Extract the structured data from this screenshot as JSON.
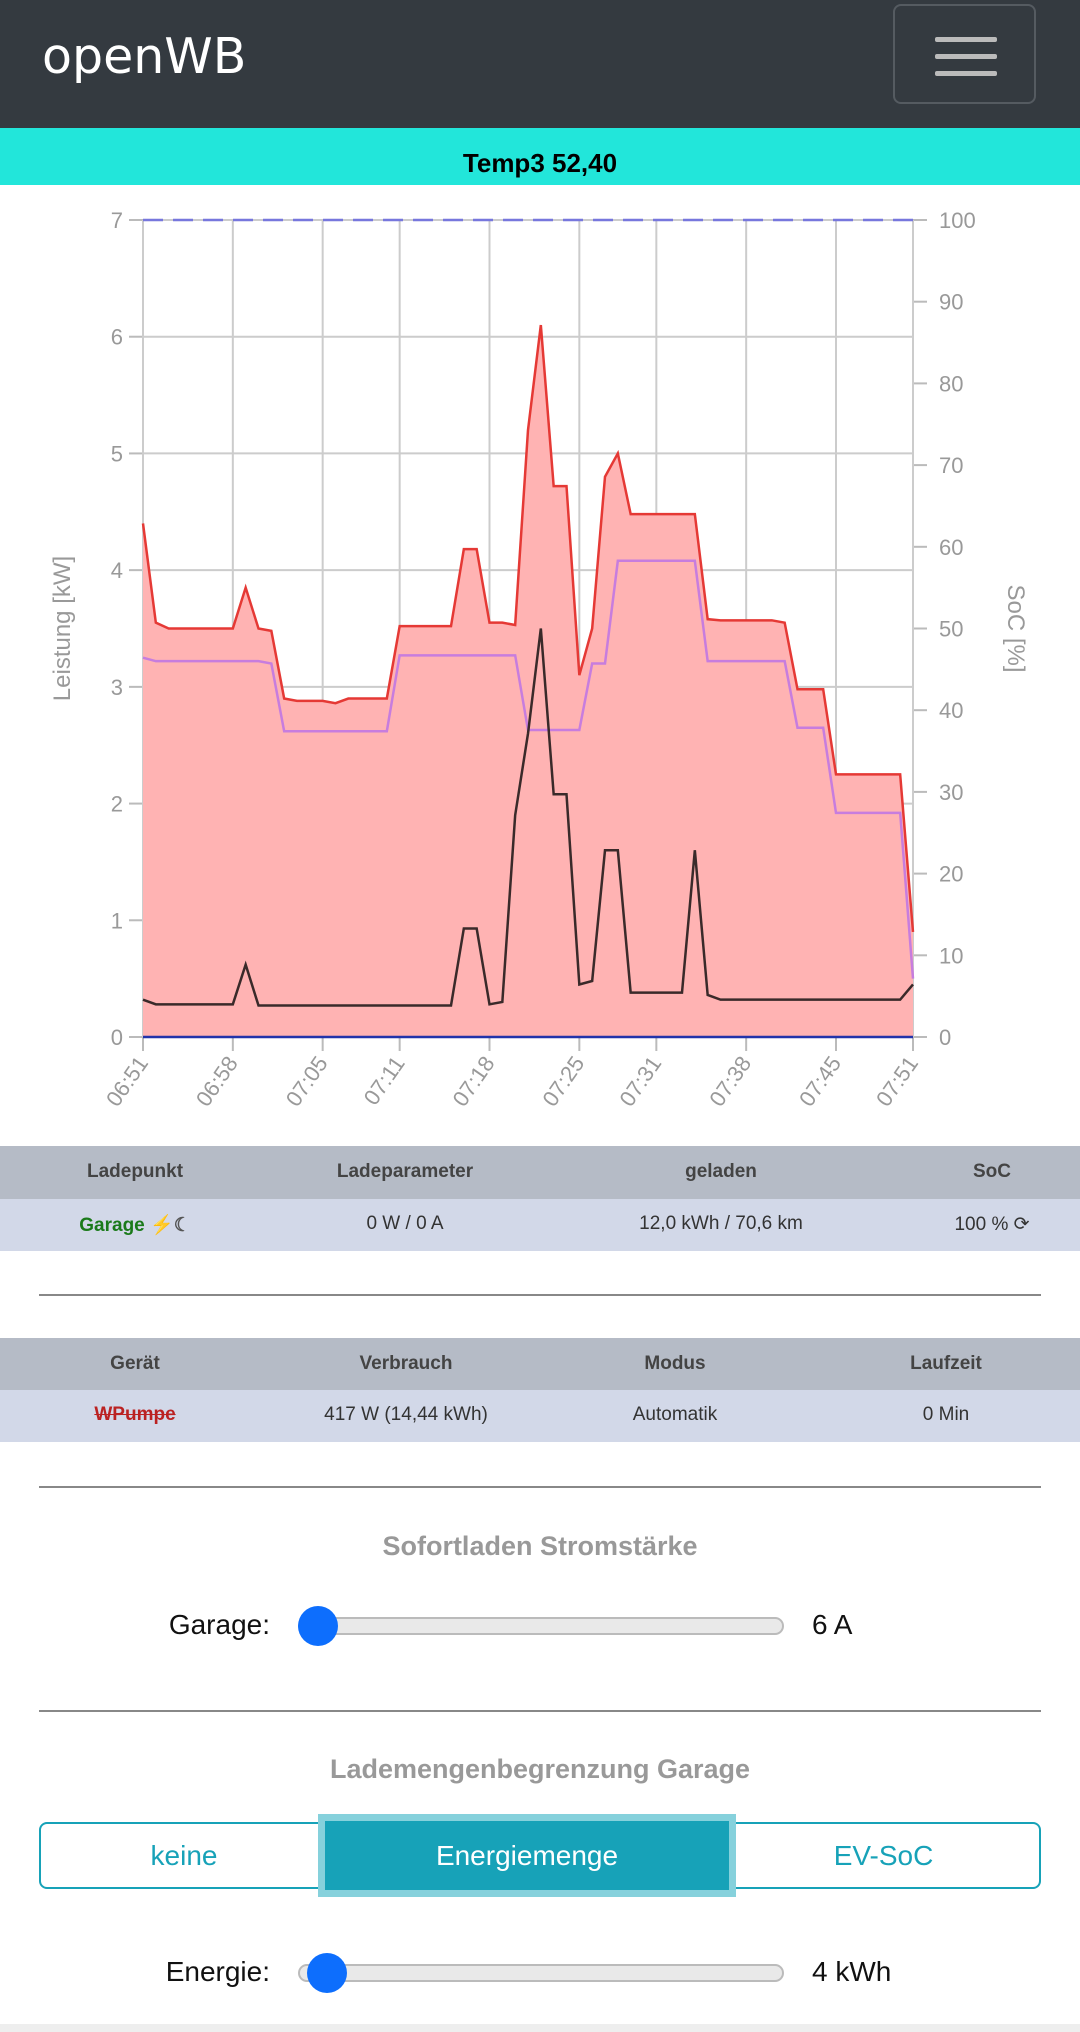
{
  "header": {
    "title": "openWB"
  },
  "banner": {
    "text": "Temp3 52,40"
  },
  "chart_data": {
    "type": "line",
    "ylabel": "Leistung [kW]",
    "y2label": "SoC [%]",
    "x": [
      "06:51",
      "06:52",
      "06:53",
      "06:54",
      "06:55",
      "06:56",
      "06:57",
      "06:58",
      "06:59",
      "07:00",
      "07:01",
      "07:02",
      "07:03",
      "07:04",
      "07:05",
      "07:06",
      "07:07",
      "07:08",
      "07:09",
      "07:10",
      "07:11",
      "07:12",
      "07:13",
      "07:14",
      "07:15",
      "07:16",
      "07:17",
      "07:18",
      "07:19",
      "07:20",
      "07:21",
      "07:22",
      "07:23",
      "07:24",
      "07:25",
      "07:26",
      "07:27",
      "07:28",
      "07:29",
      "07:30",
      "07:31",
      "07:32",
      "07:33",
      "07:34",
      "07:35",
      "07:36",
      "07:37",
      "07:38",
      "07:39",
      "07:40",
      "07:41",
      "07:42",
      "07:43",
      "07:44",
      "07:45",
      "07:46",
      "07:47",
      "07:48",
      "07:49",
      "07:50",
      "07:51"
    ],
    "xticks": [
      "06:51",
      "06:58",
      "07:05",
      "07:11",
      "07:18",
      "07:25",
      "07:31",
      "07:38",
      "07:45",
      "07:51"
    ],
    "ylim": [
      0,
      7
    ],
    "yticks": [
      0,
      1,
      2,
      3,
      4,
      5,
      6,
      7
    ],
    "y2lim": [
      0,
      100
    ],
    "y2ticks": [
      0,
      10,
      20,
      30,
      40,
      50,
      60,
      70,
      80,
      90,
      100
    ],
    "grid": true,
    "series": [
      {
        "color": "#e53935",
        "fill": "#ffb3b3",
        "area": true,
        "values": [
          4.4,
          3.55,
          3.5,
          3.5,
          3.5,
          3.5,
          3.5,
          3.5,
          3.85,
          3.5,
          3.48,
          2.9,
          2.88,
          2.88,
          2.88,
          2.86,
          2.9,
          2.9,
          2.9,
          2.9,
          3.52,
          3.52,
          3.52,
          3.52,
          3.52,
          4.18,
          4.18,
          3.55,
          3.55,
          3.53,
          5.2,
          6.1,
          4.72,
          4.72,
          3.1,
          3.5,
          4.8,
          5.0,
          4.48,
          4.48,
          4.48,
          4.48,
          4.48,
          4.48,
          3.58,
          3.57,
          3.57,
          3.57,
          3.57,
          3.57,
          3.55,
          2.98,
          2.98,
          2.98,
          2.25,
          2.25,
          2.25,
          2.25,
          2.25,
          2.25,
          0.9
        ]
      },
      {
        "color": "#c77dde",
        "values": [
          3.25,
          3.22,
          3.22,
          3.22,
          3.22,
          3.22,
          3.22,
          3.22,
          3.22,
          3.22,
          3.2,
          2.62,
          2.62,
          2.62,
          2.62,
          2.62,
          2.62,
          2.62,
          2.62,
          2.62,
          3.27,
          3.27,
          3.27,
          3.27,
          3.27,
          3.27,
          3.27,
          3.27,
          3.27,
          3.27,
          2.63,
          2.63,
          2.63,
          2.63,
          2.63,
          3.2,
          3.2,
          4.08,
          4.08,
          4.08,
          4.08,
          4.08,
          4.08,
          4.08,
          3.22,
          3.22,
          3.22,
          3.22,
          3.22,
          3.22,
          3.22,
          2.65,
          2.65,
          2.65,
          1.92,
          1.92,
          1.92,
          1.92,
          1.92,
          1.92,
          0.5
        ]
      },
      {
        "color": "#3a2a2a",
        "values": [
          0.32,
          0.28,
          0.28,
          0.28,
          0.28,
          0.28,
          0.28,
          0.28,
          0.62,
          0.27,
          0.27,
          0.27,
          0.27,
          0.27,
          0.27,
          0.27,
          0.27,
          0.27,
          0.27,
          0.27,
          0.27,
          0.27,
          0.27,
          0.27,
          0.27,
          0.93,
          0.93,
          0.28,
          0.3,
          1.9,
          2.6,
          3.5,
          2.08,
          2.08,
          0.45,
          0.48,
          1.6,
          1.6,
          0.38,
          0.38,
          0.38,
          0.38,
          0.38,
          1.6,
          0.36,
          0.32,
          0.32,
          0.32,
          0.32,
          0.32,
          0.32,
          0.32,
          0.32,
          0.32,
          0.32,
          0.32,
          0.32,
          0.32,
          0.32,
          0.32,
          0.45
        ]
      },
      {
        "color": "#7777dd",
        "dashed": true,
        "axis": "y2",
        "values": [
          100,
          100,
          100,
          100,
          100,
          100,
          100,
          100,
          100,
          100,
          100,
          100,
          100,
          100,
          100,
          100,
          100,
          100,
          100,
          100,
          100,
          100,
          100,
          100,
          100,
          100,
          100,
          100,
          100,
          100,
          100,
          100,
          100,
          100,
          100,
          100,
          100,
          100,
          100,
          100,
          100,
          100,
          100,
          100,
          100,
          100,
          100,
          100,
          100,
          100,
          100,
          100,
          100,
          100,
          100,
          100,
          100,
          100,
          100,
          100,
          100
        ]
      },
      {
        "color": "#2233aa",
        "values": [
          0,
          0,
          0,
          0,
          0,
          0,
          0,
          0,
          0,
          0,
          0,
          0,
          0,
          0,
          0,
          0,
          0,
          0,
          0,
          0,
          0,
          0,
          0,
          0,
          0,
          0,
          0,
          0,
          0,
          0,
          0,
          0,
          0,
          0,
          0,
          0,
          0,
          0,
          0,
          0,
          0,
          0,
          0,
          0,
          0,
          0,
          0,
          0,
          0,
          0,
          0,
          0,
          0,
          0,
          0,
          0,
          0,
          0,
          0,
          0,
          0
        ]
      }
    ]
  },
  "charge_table": {
    "headers": [
      "Ladepunkt",
      "Ladeparameter",
      "geladen",
      "SoC"
    ],
    "rows": [
      [
        "Garage",
        "0 W / 0 A",
        "12,0 kWh / 70,6 km",
        "100 %"
      ]
    ]
  },
  "device_table": {
    "headers": [
      "Gerät",
      "Verbrauch",
      "Modus",
      "Laufzeit"
    ],
    "rows": [
      [
        "WPumpe",
        "417 W (14,44 kWh)",
        "Automatik",
        "0 Min"
      ]
    ]
  },
  "instant_charge": {
    "title": "Sofortladen Stromstärke",
    "label": "Garage:",
    "value": "6 A"
  },
  "limit": {
    "title": "Lademengenbegrenzung Garage",
    "options": [
      "keine",
      "Energiemenge",
      "EV-SoC"
    ],
    "label": "Energie:",
    "value": "4 kWh"
  }
}
